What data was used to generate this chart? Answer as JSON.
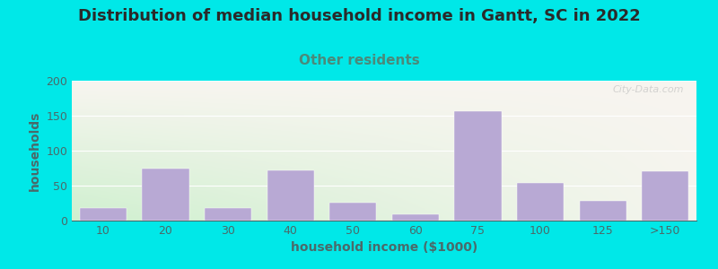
{
  "title": "Distribution of median household income in Gantt, SC in 2022",
  "subtitle": "Other residents",
  "xlabel": "household income ($1000)",
  "ylabel": "households",
  "bar_labels": [
    "10",
    "20",
    "30",
    "40",
    "50",
    "60",
    "75",
    "100",
    "125",
    ">150"
  ],
  "bar_values": [
    18,
    75,
    18,
    72,
    26,
    9,
    157,
    54,
    28,
    70
  ],
  "bar_color": "#b8a9d4",
  "bar_edgecolor": "#b8a9d4",
  "ylim": [
    0,
    200
  ],
  "yticks": [
    0,
    50,
    100,
    150,
    200
  ],
  "background_outer": "#00e8e8",
  "background_inner_left": "#cff0cf",
  "background_inner_right": "#f5f5ee",
  "title_color": "#2a2a2a",
  "subtitle_color": "#4a8a7a",
  "axis_label_color": "#4a6a6a",
  "tick_color": "#4a6a6a",
  "watermark_text": "City-Data.com",
  "title_fontsize": 13,
  "subtitle_fontsize": 11,
  "xlabel_fontsize": 10,
  "ylabel_fontsize": 10,
  "tick_fontsize": 9
}
